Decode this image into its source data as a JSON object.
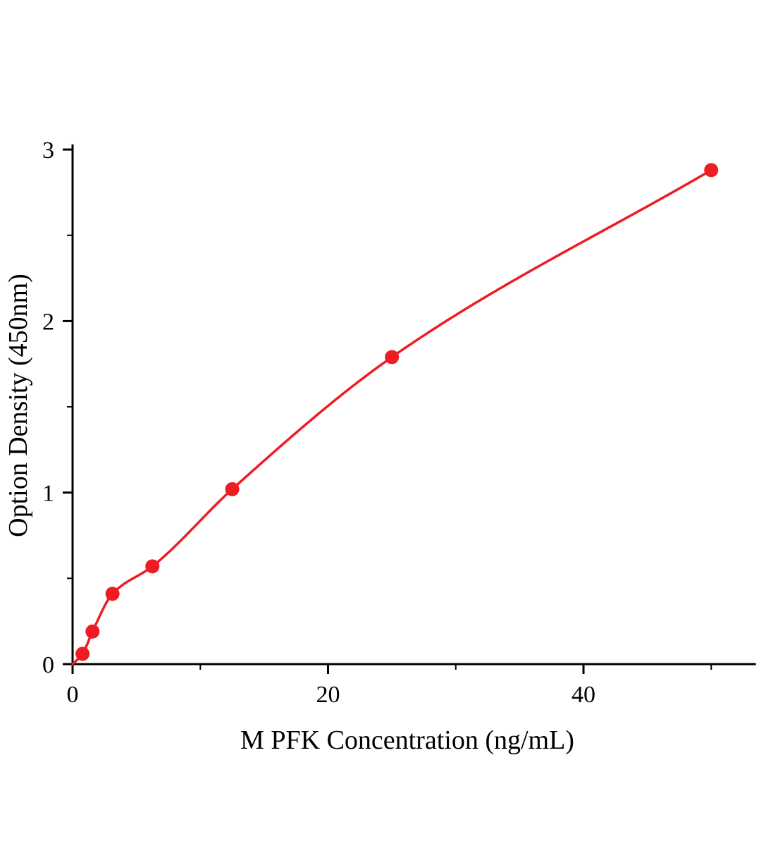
{
  "figure": {
    "background_color": "#ffffff"
  },
  "chart_data": {
    "type": "scatter",
    "title": "",
    "xlabel": "M PFK Concentration (ng/mL)",
    "ylabel": "Option Density (450nm)",
    "x": [
      0.78,
      1.56,
      3.125,
      6.25,
      12.5,
      25,
      50
    ],
    "y": [
      0.06,
      0.19,
      0.41,
      0.57,
      1.02,
      1.79,
      2.88
    ],
    "has_fit_curve": true,
    "curve_starts_at_origin": true,
    "xlim": [
      0,
      53.5
    ],
    "ylim": [
      0,
      3.03
    ],
    "x_major_ticks": [
      0,
      20,
      40
    ],
    "x_minor_ticks": [
      10,
      30,
      50
    ],
    "y_major_ticks": [
      0,
      1,
      2,
      3
    ],
    "y_minor_ticks": [
      0.5,
      1.5,
      2.5
    ],
    "marker_color": "#ee1c23",
    "line_color": "#ee1c23",
    "axis_color": "#000000",
    "grid": false,
    "legend_position": "none"
  }
}
